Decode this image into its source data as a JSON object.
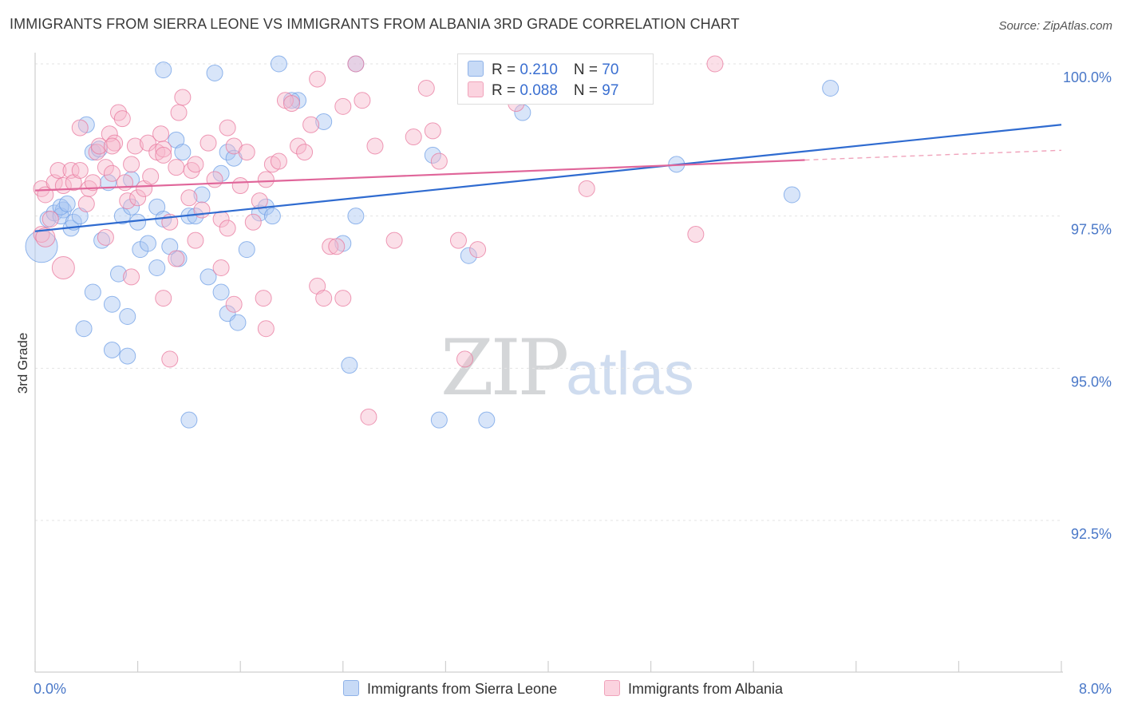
{
  "title": "IMMIGRANTS FROM SIERRA LEONE VS IMMIGRANTS FROM ALBANIA 3RD GRADE CORRELATION CHART",
  "source": "Source: ZipAtlas.com",
  "watermark": {
    "zip": "ZIP",
    "atlas": "atlas"
  },
  "legend": {
    "rows": [
      {
        "r_label": "R = ",
        "r_value": "0.210",
        "n_label": "N = ",
        "n_value": "70",
        "color": "#a9c6f2"
      },
      {
        "r_label": "R = ",
        "r_value": "0.088",
        "n_label": "N = ",
        "n_value": "97",
        "color": "#f7b9cc"
      }
    ]
  },
  "bottom_legend": [
    {
      "label": "Immigrants from Sierra Leone",
      "color": "#a9c6f2"
    },
    {
      "label": "Immigrants from Albania",
      "color": "#f7b9cc"
    }
  ],
  "chart_data": {
    "type": "scatter",
    "title": "IMMIGRANTS FROM SIERRA LEONE VS IMMIGRANTS FROM ALBANIA 3RD GRADE CORRELATION CHART",
    "xlabel": "",
    "ylabel": "3rd Grade",
    "xlim": [
      0.0,
      8.0
    ],
    "ylim": [
      90.0,
      100.25
    ],
    "x_tick_labels": [
      "0.0%",
      "8.0%"
    ],
    "y_ticks": [
      92.5,
      95.0,
      97.5,
      100.0
    ],
    "y_tick_labels": [
      "92.5%",
      "95.0%",
      "97.5%",
      "100.0%"
    ],
    "grid": true,
    "legend_position": "top-center",
    "series": [
      {
        "name": "Immigrants from Sierra Leone",
        "color": "#6f9fe6",
        "fill": "#a9c6f2",
        "trend": {
          "x": [
            0.0,
            8.0
          ],
          "y": [
            97.25,
            99.0
          ]
        },
        "points": [
          [
            0.05,
            97.0,
            20
          ],
          [
            0.1,
            97.45,
            10
          ],
          [
            0.15,
            97.55,
            10
          ],
          [
            0.22,
            97.6,
            10
          ],
          [
            0.2,
            97.5,
            10
          ],
          [
            0.28,
            97.3,
            10
          ],
          [
            0.3,
            97.4,
            10
          ],
          [
            0.35,
            97.5,
            10
          ],
          [
            0.4,
            99.0,
            10
          ],
          [
            0.45,
            98.55,
            10
          ],
          [
            0.5,
            98.6,
            10
          ],
          [
            0.52,
            97.1,
            10
          ],
          [
            0.57,
            98.05,
            10
          ],
          [
            0.68,
            97.5,
            10
          ],
          [
            0.75,
            97.65,
            10
          ],
          [
            0.8,
            97.4,
            10
          ],
          [
            0.82,
            96.95,
            10
          ],
          [
            0.88,
            97.05,
            10
          ],
          [
            0.95,
            97.65,
            10
          ],
          [
            1.0,
            97.45,
            10
          ],
          [
            1.05,
            97.0,
            10
          ],
          [
            1.1,
            98.75,
            10
          ],
          [
            1.12,
            96.8,
            10
          ],
          [
            1.15,
            98.55,
            10
          ],
          [
            1.2,
            97.5,
            10
          ],
          [
            0.65,
            96.55,
            10
          ],
          [
            0.95,
            96.65,
            10
          ],
          [
            1.3,
            97.85,
            10
          ],
          [
            1.35,
            96.5,
            10
          ],
          [
            1.45,
            98.2,
            10
          ],
          [
            1.5,
            98.55,
            10
          ],
          [
            1.55,
            98.45,
            10
          ],
          [
            1.65,
            96.95,
            10
          ],
          [
            1.75,
            97.55,
            10
          ],
          [
            1.8,
            97.65,
            10
          ],
          [
            2.05,
            99.4,
            10
          ],
          [
            2.25,
            99.05,
            10
          ],
          [
            2.5,
            97.5,
            10
          ],
          [
            2.4,
            97.05,
            10
          ],
          [
            2.45,
            95.05,
            10
          ],
          [
            3.1,
            98.5,
            10
          ],
          [
            3.15,
            94.15,
            10
          ],
          [
            3.38,
            96.85,
            10
          ],
          [
            3.52,
            94.15,
            10
          ],
          [
            3.8,
            99.2,
            10
          ],
          [
            0.45,
            96.25,
            10
          ],
          [
            0.38,
            95.65,
            10
          ],
          [
            0.6,
            95.3,
            10
          ],
          [
            0.72,
            95.85,
            10
          ],
          [
            0.72,
            95.2,
            10
          ],
          [
            1.2,
            94.15,
            10
          ],
          [
            1.45,
            96.25,
            10
          ],
          [
            1.5,
            95.9,
            10
          ],
          [
            1.58,
            95.75,
            10
          ],
          [
            1.0,
            99.9,
            10
          ],
          [
            1.4,
            99.85,
            10
          ],
          [
            1.9,
            100.0,
            10
          ],
          [
            2.5,
            100.0,
            10
          ],
          [
            3.4,
            100.0,
            10
          ],
          [
            4.1,
            100.0,
            10
          ],
          [
            5.0,
            98.35,
            10
          ],
          [
            5.9,
            97.85,
            10
          ],
          [
            6.2,
            99.6,
            10
          ],
          [
            2.0,
            99.4,
            10
          ],
          [
            0.2,
            97.65,
            10
          ],
          [
            0.25,
            97.7,
            10
          ],
          [
            0.75,
            98.1,
            10
          ],
          [
            1.85,
            97.5,
            10
          ],
          [
            1.25,
            97.5,
            10
          ],
          [
            0.6,
            96.05,
            10
          ]
        ]
      },
      {
        "name": "Immigrants from Albania",
        "color": "#e8789e",
        "fill": "#f7b9cc",
        "trend": {
          "x": [
            0.0,
            6.0
          ],
          "y": [
            97.92,
            98.42
          ]
        },
        "trend_dashed": {
          "x": [
            6.0,
            8.0
          ],
          "y": [
            98.42,
            98.58
          ]
        },
        "points": [
          [
            0.05,
            97.95,
            10
          ],
          [
            0.08,
            97.85,
            10
          ],
          [
            0.05,
            97.2,
            10
          ],
          [
            0.12,
            97.45,
            10
          ],
          [
            0.15,
            98.05,
            10
          ],
          [
            0.18,
            98.25,
            10
          ],
          [
            0.22,
            98.0,
            10
          ],
          [
            0.28,
            98.25,
            10
          ],
          [
            0.3,
            98.05,
            10
          ],
          [
            0.35,
            98.25,
            10
          ],
          [
            0.35,
            98.95,
            10
          ],
          [
            0.4,
            97.7,
            10
          ],
          [
            0.42,
            97.95,
            10
          ],
          [
            0.45,
            98.05,
            10
          ],
          [
            0.48,
            98.55,
            10
          ],
          [
            0.5,
            98.65,
            10
          ],
          [
            0.55,
            98.3,
            10
          ],
          [
            0.58,
            98.85,
            10
          ],
          [
            0.6,
            98.2,
            10
          ],
          [
            0.62,
            98.7,
            10
          ],
          [
            0.65,
            99.2,
            10
          ],
          [
            0.68,
            99.1,
            10
          ],
          [
            0.7,
            98.05,
            10
          ],
          [
            0.72,
            97.75,
            10
          ],
          [
            0.75,
            98.35,
            10
          ],
          [
            0.78,
            98.65,
            10
          ],
          [
            0.8,
            97.8,
            10
          ],
          [
            0.85,
            97.95,
            10
          ],
          [
            0.88,
            98.7,
            10
          ],
          [
            0.9,
            98.15,
            10
          ],
          [
            0.95,
            98.55,
            10
          ],
          [
            0.98,
            98.85,
            10
          ],
          [
            1.0,
            98.6,
            10
          ],
          [
            1.05,
            97.4,
            10
          ],
          [
            1.1,
            98.3,
            10
          ],
          [
            1.12,
            99.2,
            10
          ],
          [
            1.15,
            99.45,
            10
          ],
          [
            1.2,
            97.8,
            10
          ],
          [
            1.22,
            98.25,
            10
          ],
          [
            1.25,
            98.35,
            10
          ],
          [
            1.3,
            97.6,
            10
          ],
          [
            1.35,
            98.7,
            10
          ],
          [
            1.4,
            98.1,
            10
          ],
          [
            1.45,
            97.45,
            10
          ],
          [
            1.5,
            98.95,
            10
          ],
          [
            1.55,
            98.65,
            10
          ],
          [
            1.6,
            98.0,
            10
          ],
          [
            1.65,
            98.55,
            10
          ],
          [
            1.7,
            97.4,
            10
          ],
          [
            1.75,
            97.75,
            10
          ],
          [
            1.8,
            98.1,
            10
          ],
          [
            1.85,
            98.35,
            10
          ],
          [
            1.9,
            98.4,
            10
          ],
          [
            1.95,
            99.4,
            10
          ],
          [
            2.0,
            99.35,
            10
          ],
          [
            2.05,
            98.65,
            10
          ],
          [
            2.1,
            98.55,
            10
          ],
          [
            2.15,
            99.0,
            10
          ],
          [
            2.2,
            99.75,
            10
          ],
          [
            2.3,
            97.0,
            10
          ],
          [
            2.4,
            99.3,
            10
          ],
          [
            2.5,
            100.0,
            10
          ],
          [
            2.55,
            99.4,
            10
          ],
          [
            2.65,
            98.65,
            10
          ],
          [
            2.95,
            98.8,
            10
          ],
          [
            3.05,
            99.6,
            10
          ],
          [
            3.1,
            98.9,
            10
          ],
          [
            3.15,
            98.4,
            10
          ],
          [
            3.4,
            99.7,
            10
          ],
          [
            3.75,
            99.35,
            10
          ],
          [
            4.3,
            97.95,
            10
          ],
          [
            5.15,
            97.2,
            10
          ],
          [
            5.3,
            100.0,
            10
          ],
          [
            0.08,
            97.15,
            12
          ],
          [
            0.22,
            96.65,
            14
          ],
          [
            0.55,
            97.15,
            10
          ],
          [
            0.75,
            96.5,
            10
          ],
          [
            1.0,
            96.15,
            10
          ],
          [
            1.1,
            96.8,
            10
          ],
          [
            1.45,
            96.65,
            10
          ],
          [
            1.55,
            96.05,
            10
          ],
          [
            1.8,
            95.65,
            10
          ],
          [
            2.2,
            96.35,
            10
          ],
          [
            2.25,
            96.15,
            10
          ],
          [
            2.4,
            96.15,
            10
          ],
          [
            2.6,
            94.2,
            10
          ],
          [
            3.35,
            95.15,
            10
          ],
          [
            1.05,
            95.15,
            10
          ],
          [
            1.0,
            98.5,
            10
          ],
          [
            1.25,
            97.1,
            10
          ],
          [
            1.5,
            97.3,
            10
          ],
          [
            2.35,
            97.0,
            10
          ],
          [
            2.8,
            97.1,
            10
          ],
          [
            3.3,
            97.1,
            10
          ],
          [
            3.45,
            96.95,
            10
          ],
          [
            0.6,
            98.65,
            10
          ],
          [
            1.78,
            96.15,
            10
          ]
        ]
      }
    ]
  }
}
